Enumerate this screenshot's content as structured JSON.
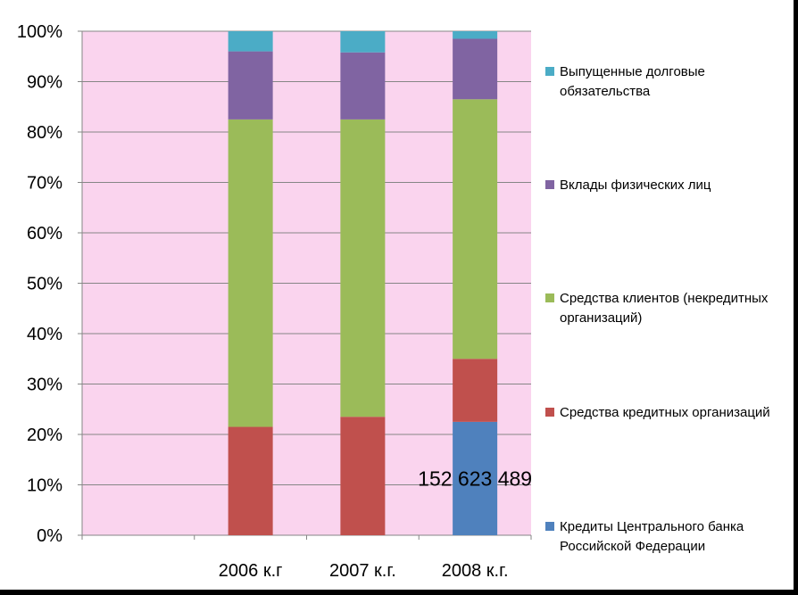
{
  "chart_data": {
    "type": "bar",
    "stacked": "percent",
    "title": "",
    "xlabel": "",
    "ylabel": "",
    "ylim": [
      0,
      100
    ],
    "yticks": [
      "0%",
      "10%",
      "20%",
      "30%",
      "40%",
      "50%",
      "60%",
      "70%",
      "80%",
      "90%",
      "100%"
    ],
    "categories": [
      "",
      "2006 к.г",
      "2007 к.г.",
      "2008 к.г."
    ],
    "series": [
      {
        "name": "Кредиты Центрального банка Российской Федерации",
        "color": "#4F81BD",
        "values": [
          0,
          0,
          0,
          22.5
        ]
      },
      {
        "name": "Средства кредитных организаций",
        "color": "#C0504D",
        "values": [
          0,
          21.5,
          23.5,
          12.5
        ]
      },
      {
        "name": "Средства клиентов (некредитных организаций)",
        "color": "#9BBB59",
        "values": [
          0,
          61,
          59,
          51.5
        ]
      },
      {
        "name": "Вклады физических лиц",
        "color": "#8064A2",
        "values": [
          0,
          13.5,
          13.3,
          12
        ]
      },
      {
        "name": "Выпущенные долговые обязательства",
        "color": "#4BACC6",
        "values": [
          0,
          4,
          4.2,
          1.5
        ]
      }
    ],
    "annotations": [
      {
        "text": "152 623 489",
        "category": "2008 к.г.",
        "series": "Кредиты Центрального банка Российской Федерации"
      }
    ],
    "plot_background": "#FAD4EE",
    "grid": true,
    "legend_position": "right"
  }
}
